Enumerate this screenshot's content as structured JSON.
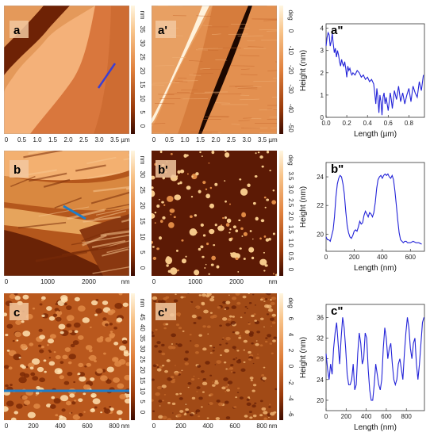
{
  "rows": [
    {
      "height_label": "a",
      "phase_label": "a'",
      "profile_label": "a\"",
      "height_map": {
        "kind": "steps",
        "colors": [
          "#f4b179",
          "#d9773d",
          "#6e2205"
        ],
        "x_ticks": [
          "0",
          "0.5",
          "1.0",
          "1.5",
          "2.0",
          "2.5",
          "3.0",
          "3.5"
        ],
        "x_unit": "µm",
        "profile_line": "#3a3fd4"
      },
      "height_scale": {
        "ticks": [
          "35",
          "30",
          "25",
          "20",
          "15",
          "10",
          "5",
          "0"
        ],
        "unit": "nm"
      },
      "phase_map": {
        "kind": "phase-steps",
        "x_ticks": [
          "0",
          "0.5",
          "1.0",
          "1.5",
          "2.0",
          "2.5",
          "3.0",
          "3.5"
        ],
        "x_unit": "µm"
      },
      "phase_scale": {
        "ticks": [
          "0",
          "-10",
          "-20",
          "-30",
          "-40",
          "-50"
        ],
        "unit": "deg"
      },
      "chart_data": {
        "type": "line",
        "xlabel": "Length (µm)",
        "ylabel": "Height (nm)",
        "xlim": [
          0,
          0.95
        ],
        "ylim": [
          0,
          4.2
        ],
        "xticks": [
          "0.0",
          "0.2",
          "0.4",
          "0.6",
          "0.8"
        ],
        "xtick_values": [
          0,
          0.2,
          0.4,
          0.6,
          0.8
        ],
        "yticks": [
          "0",
          "1",
          "2",
          "3",
          "4"
        ],
        "ytick_values": [
          0,
          1,
          2,
          3,
          4
        ],
        "series": [
          {
            "color": "#2323d8",
            "x": [
              0,
              0.01,
              0.02,
              0.03,
              0.04,
              0.05,
              0.06,
              0.07,
              0.08,
              0.09,
              0.1,
              0.11,
              0.12,
              0.13,
              0.14,
              0.15,
              0.16,
              0.17,
              0.18,
              0.19,
              0.2,
              0.21,
              0.22,
              0.23,
              0.24,
              0.25,
              0.26,
              0.28,
              0.3,
              0.32,
              0.34,
              0.36,
              0.38,
              0.4,
              0.42,
              0.44,
              0.46,
              0.47,
              0.48,
              0.49,
              0.5,
              0.51,
              0.52,
              0.53,
              0.54,
              0.55,
              0.56,
              0.57,
              0.58,
              0.6,
              0.62,
              0.63,
              0.64,
              0.66,
              0.68,
              0.7,
              0.72,
              0.74,
              0.76,
              0.78,
              0.8,
              0.82,
              0.84,
              0.86,
              0.88,
              0.9,
              0.92,
              0.94
            ],
            "y": [
              3.2,
              3.6,
              3.8,
              3.7,
              3.2,
              3.4,
              3.75,
              3.3,
              2.9,
              3.1,
              2.7,
              3.0,
              2.8,
              2.5,
              2.3,
              2.6,
              2.4,
              2.3,
              2.5,
              2.2,
              1.8,
              2.3,
              2.1,
              2.2,
              2.0,
              1.9,
              2.0,
              1.9,
              2.1,
              2.0,
              1.8,
              1.9,
              1.7,
              1.8,
              1.6,
              1.7,
              1.5,
              1.1,
              0.6,
              1.3,
              0.9,
              0.2,
              1.0,
              0.7,
              0.1,
              0.9,
              1.1,
              0.6,
              0.9,
              0.3,
              1.1,
              0.8,
              0.4,
              1.2,
              0.8,
              1.4,
              0.7,
              1.1,
              0.6,
              1.0,
              1.3,
              0.7,
              1.4,
              1.1,
              0.9,
              1.6,
              1.2,
              1.9
            ]
          }
        ]
      }
    },
    {
      "height_label": "b",
      "phase_label": "b'",
      "profile_label": "b\"",
      "height_map": {
        "kind": "terraces",
        "x_ticks": [
          "0",
          "1000",
          "2000"
        ],
        "x_unit": "nm",
        "profile_line": "#1d7dc9"
      },
      "height_scale": {
        "ticks": [
          "30",
          "25",
          "20",
          "15",
          "10",
          "5",
          "0"
        ],
        "unit": "nm"
      },
      "phase_map": {
        "kind": "islands",
        "x_ticks": [
          "0",
          "1000",
          "2000"
        ],
        "x_unit": "nm"
      },
      "phase_scale": {
        "ticks": [
          "3.5",
          "3.0",
          "2.5",
          "2.0",
          "1.5",
          "1.0",
          "0.5",
          "0"
        ],
        "unit": "deg"
      },
      "chart_data": {
        "type": "line",
        "xlabel": "Length (nm)",
        "ylabel": "Height (nm)",
        "xlim": [
          0,
          700
        ],
        "ylim": [
          18.8,
          25
        ],
        "xticks": [
          "0",
          "200",
          "400",
          "600"
        ],
        "xtick_values": [
          0,
          200,
          400,
          600
        ],
        "yticks": [
          "20",
          "22",
          "24"
        ],
        "ytick_values": [
          20,
          22,
          24
        ],
        "series": [
          {
            "color": "#2323d8",
            "x": [
              0,
              10,
              20,
              30,
              40,
              50,
              60,
              70,
              80,
              90,
              100,
              110,
              120,
              130,
              140,
              150,
              160,
              170,
              180,
              190,
              200,
              210,
              220,
              230,
              240,
              250,
              260,
              270,
              280,
              290,
              300,
              310,
              320,
              330,
              340,
              350,
              360,
              370,
              380,
              390,
              400,
              410,
              420,
              430,
              440,
              450,
              460,
              470,
              480,
              490,
              500,
              510,
              520,
              530,
              540,
              550,
              560,
              570,
              580,
              590,
              600,
              620,
              640,
              660,
              680
            ],
            "y": [
              19.8,
              19.6,
              19.6,
              19.5,
              19.9,
              20.3,
              21.2,
              22.6,
              23.5,
              23.9,
              24.1,
              24.0,
              23.5,
              22.8,
              21.6,
              20.6,
              20.1,
              19.8,
              19.7,
              19.9,
              20.2,
              20.3,
              20.2,
              20.5,
              20.9,
              20.7,
              20.8,
              21.3,
              21.6,
              21.4,
              21.2,
              21.5,
              21.4,
              21.2,
              21.5,
              22.2,
              23.2,
              23.8,
              24.0,
              24.1,
              23.9,
              24.1,
              24.2,
              24.1,
              24.2,
              24.0,
              23.9,
              24.1,
              23.8,
              23.0,
              22.0,
              21.0,
              20.1,
              19.6,
              19.5,
              19.4,
              19.5,
              19.5,
              19.4,
              19.4,
              19.4,
              19.5,
              19.4,
              19.4,
              19.3
            ]
          }
        ]
      }
    },
    {
      "height_label": "c",
      "phase_label": "c'",
      "profile_label": "c\"",
      "height_map": {
        "kind": "grainy",
        "x_ticks": [
          "0",
          "200",
          "400",
          "600",
          "800"
        ],
        "x_unit": "nm",
        "profile_line": "#1d7dc9"
      },
      "height_scale": {
        "ticks": [
          "45",
          "40",
          "35",
          "30",
          "25",
          "20",
          "15",
          "10",
          "5",
          "0"
        ],
        "unit": "nm"
      },
      "phase_map": {
        "kind": "noise",
        "x_ticks": [
          "0",
          "200",
          "400",
          "600",
          "800"
        ],
        "x_unit": "nm"
      },
      "phase_scale": {
        "ticks": [
          "6",
          "4",
          "2",
          "0",
          "-2",
          "-4",
          "-6"
        ],
        "unit": "deg"
      },
      "chart_data": {
        "type": "line",
        "xlabel": "Length (nm)",
        "ylabel": "Height (nm)",
        "xlim": [
          0,
          980
        ],
        "ylim": [
          18,
          38.5
        ],
        "xticks": [
          "0",
          "200",
          "400",
          "600",
          "800"
        ],
        "xtick_values": [
          0,
          200,
          400,
          600,
          800
        ],
        "yticks": [
          "20",
          "24",
          "28",
          "32",
          "36"
        ],
        "ytick_values": [
          20,
          24,
          28,
          32,
          36
        ],
        "series": [
          {
            "color": "#2323d8",
            "x": [
              0,
              15,
              30,
              45,
              60,
              75,
              90,
              105,
              120,
              135,
              150,
              165,
              180,
              195,
              210,
              225,
              240,
              255,
              270,
              285,
              300,
              315,
              330,
              345,
              360,
              375,
              390,
              405,
              420,
              435,
              450,
              465,
              480,
              495,
              510,
              525,
              540,
              555,
              570,
              585,
              600,
              615,
              630,
              645,
              660,
              675,
              690,
              705,
              720,
              735,
              750,
              765,
              780,
              795,
              810,
              825,
              840,
              855,
              870,
              885,
              900,
              915,
              930,
              945,
              960,
              975
            ],
            "y": [
              29,
              26,
              24,
              27,
              25,
              30,
              33,
              35,
              31,
              27,
              32,
              36,
              34,
              30,
              25,
              23,
              23,
              24,
              27,
              22,
              23,
              29,
              33,
              31,
              27,
              28,
              33,
              32,
              26,
              22,
              20,
              20,
              23,
              27,
              25,
              23,
              22,
              24,
              30,
              34,
              32,
              28,
              30,
              31,
              27,
              24,
              23,
              24,
              27,
              28,
              26,
              24,
              29,
              33,
              36,
              34,
              30,
              28,
              31,
              32,
              27,
              24,
              27,
              31,
              35,
              36
            ]
          }
        ]
      }
    }
  ]
}
